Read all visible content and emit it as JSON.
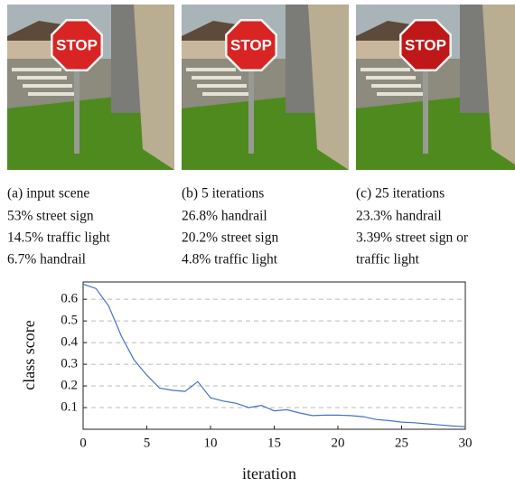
{
  "panels": [
    {
      "sign_text": "STOP",
      "caption": "(a) input scene",
      "predictions": [
        "53% street sign",
        "14.5% traffic light",
        "6.7% handrail"
      ]
    },
    {
      "sign_text": "STOP",
      "caption": "(b) 5 iterations",
      "predictions": [
        "26.8% handrail",
        "20.2% street sign",
        "4.8% traffic light"
      ]
    },
    {
      "sign_text": "STOP",
      "caption": "(c) 25 iterations",
      "predictions": [
        "23.3% handrail",
        "3.39% street sign or",
        "traffic light"
      ]
    }
  ],
  "chart_data": {
    "type": "line",
    "xlabel": "iteration",
    "ylabel": "class score",
    "x": [
      0,
      1,
      2,
      3,
      4,
      5,
      6,
      7,
      8,
      9,
      10,
      11,
      12,
      13,
      14,
      15,
      16,
      17,
      18,
      19,
      20,
      21,
      22,
      23,
      24,
      25,
      26,
      27,
      28,
      29,
      30
    ],
    "values": [
      0.67,
      0.65,
      0.57,
      0.43,
      0.32,
      0.25,
      0.19,
      0.18,
      0.175,
      0.22,
      0.145,
      0.13,
      0.12,
      0.1,
      0.11,
      0.085,
      0.09,
      0.075,
      0.063,
      0.065,
      0.065,
      0.063,
      0.058,
      0.045,
      0.04,
      0.033,
      0.03,
      0.025,
      0.02,
      0.015,
      0.012
    ],
    "color": "#4472c4",
    "xlim": [
      0,
      30
    ],
    "xticks": [
      0,
      5,
      10,
      15,
      20,
      25,
      30
    ],
    "ylim": [
      0,
      0.68
    ],
    "yticks": [
      0.1,
      0.2,
      0.3,
      0.4,
      0.5,
      0.6
    ],
    "grid": true
  }
}
